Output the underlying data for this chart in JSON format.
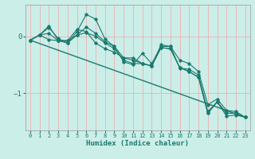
{
  "xlabel": "Humidex (Indice chaleur)",
  "bg_color": "#cceee8",
  "grid_color": "#e8b8b8",
  "line_color": "#1a7a6e",
  "xlim": [
    -0.5,
    23.5
  ],
  "ylim": [
    -1.65,
    0.55
  ],
  "yticks": [
    -1,
    0
  ],
  "xticks": [
    0,
    1,
    2,
    3,
    4,
    5,
    6,
    7,
    8,
    9,
    10,
    11,
    12,
    13,
    14,
    15,
    16,
    17,
    18,
    19,
    20,
    21,
    22,
    23
  ],
  "x": [
    0,
    1,
    2,
    3,
    4,
    5,
    6,
    7,
    8,
    9,
    10,
    11,
    12,
    13,
    14,
    15,
    16,
    17,
    18,
    19,
    20,
    21,
    22,
    23
  ],
  "series": [
    [
      -0.07,
      0.02,
      0.05,
      -0.08,
      -0.12,
      0.02,
      0.16,
      0.05,
      -0.1,
      -0.18,
      -0.38,
      -0.42,
      -0.48,
      -0.52,
      -0.2,
      -0.22,
      -0.55,
      -0.62,
      -0.72,
      -1.35,
      -1.15,
      -1.35,
      -1.35,
      -1.42
    ],
    [
      -0.07,
      0.02,
      0.15,
      -0.04,
      -0.12,
      0.08,
      0.38,
      0.3,
      -0.05,
      -0.18,
      -0.45,
      -0.5,
      -0.3,
      -0.48,
      -0.18,
      -0.18,
      -0.56,
      -0.58,
      -0.68,
      -1.32,
      -1.15,
      -1.4,
      -1.38,
      -1.42
    ],
    [
      -0.07,
      0.02,
      0.18,
      -0.07,
      -0.08,
      0.12,
      0.08,
      -0.12,
      -0.22,
      -0.28,
      -0.38,
      -0.38,
      -0.48,
      -0.52,
      -0.15,
      -0.18,
      -0.42,
      -0.48,
      -0.62,
      -1.2,
      -1.1,
      -1.3,
      -1.32,
      -1.42
    ],
    [
      -0.07,
      0.02,
      -0.06,
      -0.08,
      -0.08,
      0.02,
      0.06,
      0.0,
      -0.12,
      -0.22,
      -0.42,
      -0.48,
      -0.48,
      -0.52,
      -0.2,
      -0.22,
      -0.55,
      -0.62,
      -0.72,
      -1.35,
      -1.15,
      -1.35,
      -1.35,
      -1.42
    ]
  ],
  "trend_x": [
    0,
    23
  ],
  "trend_y": [
    -0.07,
    -1.42
  ]
}
